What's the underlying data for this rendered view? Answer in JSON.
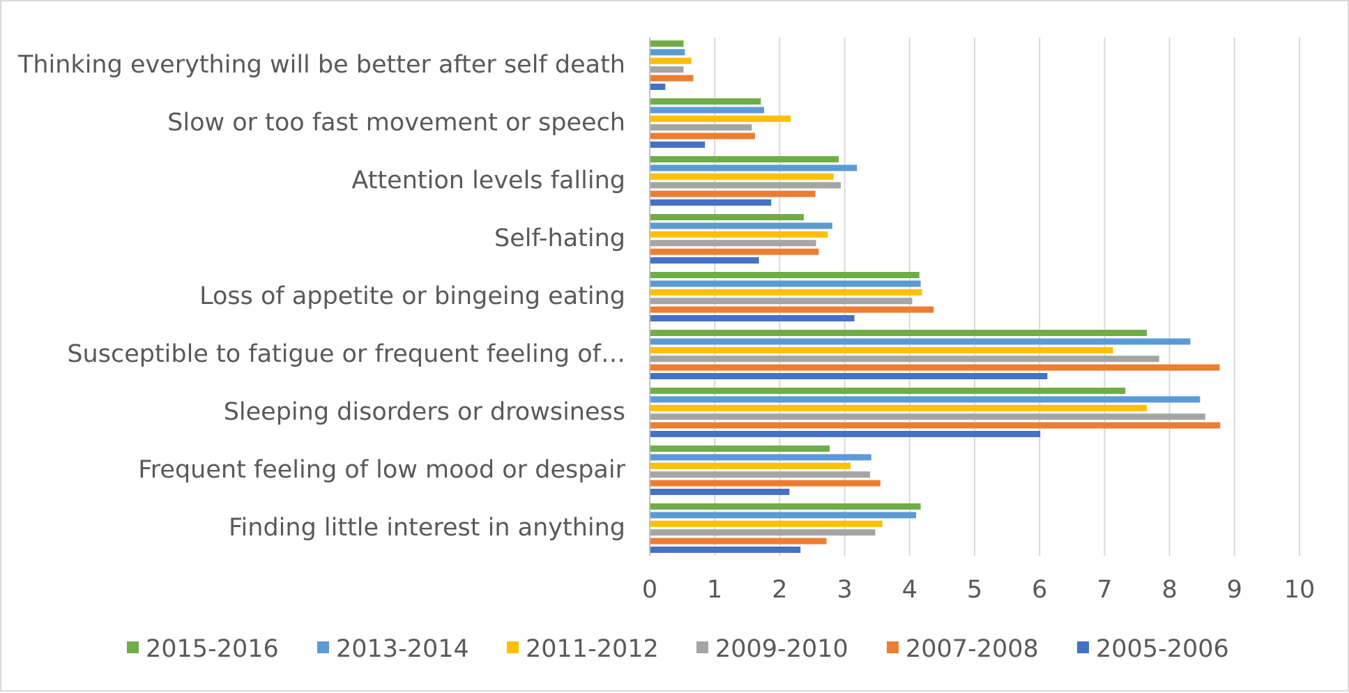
{
  "chart_data": {
    "type": "bar",
    "orientation": "horizontal",
    "title": "",
    "xlabel": "",
    "ylabel": "",
    "xlim": [
      0,
      10
    ],
    "ticks": [
      "0",
      "1",
      "2",
      "3",
      "4",
      "5",
      "6",
      "7",
      "8",
      "9",
      "10"
    ],
    "grid": true,
    "legend_position": "bottom",
    "categories": [
      "Thinking everything will be better after self death",
      "Slow or too fast movement or speech",
      "Attention levels falling",
      "Self-hating",
      "Loss of appetite or bingeing eating",
      "Susceptible to fatigue or frequent feeling of…",
      "Sleeping disorders or drowsiness",
      "Frequent feeling of low mood or despair",
      "Finding little interest in anything"
    ],
    "series": [
      {
        "name": "2015-2016",
        "color": "#70ad47",
        "values": [
          0.52,
          1.71,
          2.91,
          2.37,
          4.15,
          7.65,
          7.32,
          2.77,
          4.17
        ]
      },
      {
        "name": "2013-2014",
        "color": "#5b9bd5",
        "values": [
          0.54,
          1.76,
          3.19,
          2.81,
          4.17,
          8.32,
          8.47,
          3.41,
          4.1
        ]
      },
      {
        "name": "2011-2012",
        "color": "#ffc000",
        "values": [
          0.64,
          2.17,
          2.83,
          2.74,
          4.19,
          7.13,
          7.65,
          3.09,
          3.58
        ]
      },
      {
        "name": "2009-2010",
        "color": "#a5a5a5",
        "values": [
          0.52,
          1.57,
          2.94,
          2.56,
          4.04,
          7.84,
          8.55,
          3.39,
          3.47
        ]
      },
      {
        "name": "2007-2008",
        "color": "#ed7d31",
        "values": [
          0.67,
          1.62,
          2.55,
          2.6,
          4.37,
          8.77,
          8.78,
          3.55,
          2.72
        ]
      },
      {
        "name": "2005-2006",
        "color": "#4472c4",
        "values": [
          0.24,
          0.85,
          1.87,
          1.68,
          3.15,
          6.12,
          6.01,
          2.15,
          2.32
        ]
      }
    ],
    "legend": [
      {
        "name": "2015-2016",
        "color": "#70ad47"
      },
      {
        "name": "2013-2014",
        "color": "#5b9bd5"
      },
      {
        "name": "2011-2012",
        "color": "#ffc000"
      },
      {
        "name": "2009-2010",
        "color": "#a5a5a5"
      },
      {
        "name": "2007-2008",
        "color": "#ed7d31"
      },
      {
        "name": "2005-2006",
        "color": "#4472c4"
      }
    ]
  }
}
